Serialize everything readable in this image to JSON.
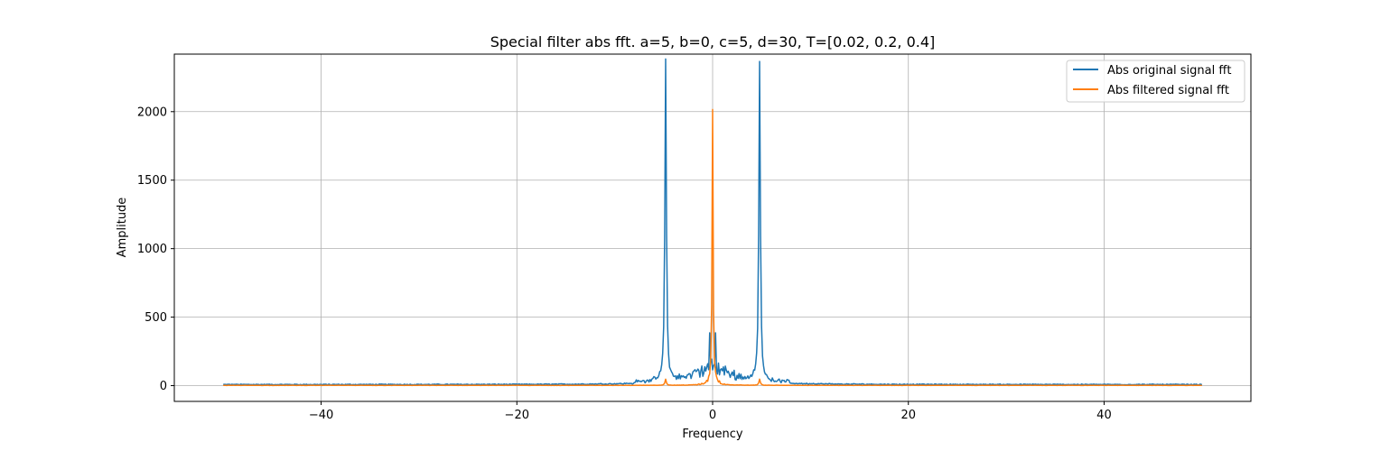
{
  "chart_data": {
    "type": "line",
    "title": "Special filter abs fft. a=5, b=0, c=5, d=30, T=[0.02, 0.2, 0.4]",
    "xlabel": "Frequency",
    "ylabel": "Amplitude",
    "xlim": [
      -55,
      55
    ],
    "ylim": [
      -115,
      2420
    ],
    "xticks": [
      -40,
      -20,
      0,
      20,
      40
    ],
    "xtick_labels": [
      "−40",
      "−20",
      "0",
      "20",
      "40"
    ],
    "yticks": [
      0,
      500,
      1000,
      1500,
      2000
    ],
    "ytick_labels": [
      "0",
      "500",
      "1000",
      "1500",
      "2000"
    ],
    "grid": true,
    "legend_position": "top-right",
    "series": [
      {
        "name": "Abs original signal fft",
        "color": "#1f77b4",
        "x_range": [
          -50,
          50
        ],
        "n_points": 1001,
        "peaks": [
          {
            "x": -4.8,
            "y": 2330
          },
          {
            "x": 4.8,
            "y": 2330
          },
          {
            "x": -0.3,
            "y": 385
          },
          {
            "x": 0.3,
            "y": 385
          }
        ],
        "noise_floor": 8
      },
      {
        "name": "Abs filtered signal fft",
        "color": "#ff7f0e",
        "x_range": [
          -50,
          50
        ],
        "n_points": 1001,
        "peaks": [
          {
            "x": 0.0,
            "y": 2000
          },
          {
            "x": -4.8,
            "y": 45
          },
          {
            "x": 4.8,
            "y": 45
          }
        ],
        "noise_floor": 2
      }
    ]
  }
}
